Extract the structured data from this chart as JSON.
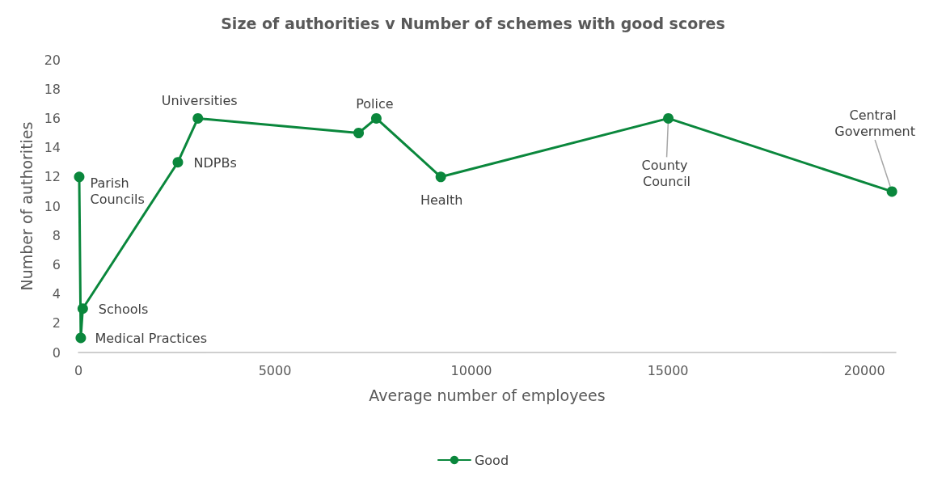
{
  "chart_data": {
    "type": "line",
    "title": "Size of authorities v Number of schemes with good scores",
    "xlabel": "Average number of employees",
    "ylabel": "Number of authorities",
    "x": [
      20,
      60,
      110,
      2530,
      3040,
      7130,
      7580,
      9220,
      15010,
      20700
    ],
    "series": [
      {
        "name": "Good",
        "color": "#0a873c",
        "values": [
          12,
          1,
          3,
          13,
          16,
          15,
          16,
          12,
          16,
          11
        ]
      }
    ],
    "xlim": [
      0,
      20800
    ],
    "xticks": [
      0,
      5000,
      10000,
      15000,
      20000
    ],
    "ylim": [
      0,
      20
    ],
    "yticks": [
      0,
      2,
      4,
      6,
      8,
      10,
      12,
      14,
      16,
      18,
      20
    ],
    "grid": false,
    "legend": "bottom",
    "marker": "circle",
    "line_style": "solid",
    "annotations": [
      {
        "text": "Parish Councils",
        "x": 20,
        "y": 12
      },
      {
        "text": "Medical Practices",
        "x": 60,
        "y": 1
      },
      {
        "text": "Schools",
        "x": 110,
        "y": 3
      },
      {
        "text": "NDPBs",
        "x": 2530,
        "y": 13
      },
      {
        "text": "Universities",
        "x": 3040,
        "y": 16
      },
      {
        "text": "Police",
        "x": 7580,
        "y": 16
      },
      {
        "text": "Health",
        "x": 9220,
        "y": 12
      },
      {
        "text": "County Council",
        "x": 15010,
        "y": 16
      },
      {
        "text": "Central Government",
        "x": 20700,
        "y": 11
      }
    ]
  }
}
